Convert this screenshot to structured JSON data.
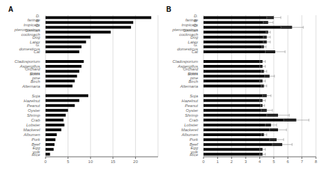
{
  "chart_data": [
    {
      "type": "bar",
      "title": "A",
      "orientation": "horizontal",
      "categories": [
        "D. farinae",
        "B. tropicalis",
        "D. pteronyssinus",
        "German cockroach",
        "Dog",
        "Latex",
        "G. domesticus",
        "Cat",
        null,
        "Cladosporium",
        "Aspergillus",
        "Orchard grass",
        "Scots pine",
        "Birch",
        "Alternaria",
        null,
        "Soja",
        "Hazelnut",
        "Peanut",
        "Oyster",
        "Shrimp",
        "Crab",
        "Lobster",
        "Mackerel",
        "Albumen",
        "Pork",
        "Beef",
        "Egg yolk",
        "Rice"
      ],
      "values": [
        23.5,
        19.5,
        19.0,
        14.5,
        10.0,
        9.0,
        8.0,
        7.5,
        null,
        8.5,
        8.0,
        7.5,
        7.0,
        6.5,
        6.0,
        null,
        9.5,
        7.5,
        6.5,
        5.0,
        4.5,
        4.0,
        4.2,
        3.5,
        2.5,
        2.2,
        2.0,
        1.8,
        1.0
      ],
      "color": "black",
      "xlim": [
        0,
        25
      ],
      "xticks": [
        0,
        5,
        10,
        15,
        20
      ],
      "grid": true
    },
    {
      "type": "bar",
      "title": "B",
      "orientation": "horizontal",
      "categories": [
        "D. farinae",
        "B. tropicalis",
        "D. pteronyssinus",
        "German cockroach",
        "Dog",
        "Latex",
        "G. domesticus",
        "Cat",
        null,
        "Cladosporium",
        "Aspergillus",
        "Orchard grass",
        "Scots pine",
        "Birch",
        "Alternaria",
        null,
        "Soja",
        "Hazelnut",
        "Peanut",
        "Oyster",
        "Shrimp",
        "Crab",
        "Lobster",
        "Mackerel",
        "Albumen",
        "Pork",
        "Beef",
        "Egg yolk",
        "Rice"
      ],
      "values": [
        5.0,
        4.6,
        6.3,
        4.6,
        4.5,
        4.5,
        4.3,
        5.1,
        null,
        4.2,
        4.2,
        4.3,
        4.7,
        4.2,
        4.3,
        null,
        4.5,
        4.2,
        4.2,
        4.5,
        5.3,
        6.6,
        4.8,
        5.3,
        4.3,
        5.2,
        5.6,
        4.2,
        4.2
      ],
      "errors": [
        0.5,
        0.35,
        0.8,
        0.15,
        0.25,
        0.25,
        0.15,
        0.7,
        null,
        0.2,
        0.2,
        0.2,
        0.35,
        0.2,
        0.2,
        null,
        0.3,
        0.2,
        0.15,
        0.4,
        0.8,
        0.9,
        0.4,
        0.6,
        0.2,
        0.5,
        0.7,
        0.2,
        0.2
      ],
      "color": "black",
      "xlim": [
        0,
        8
      ],
      "xticks": [
        0,
        1,
        2,
        3,
        4,
        5,
        6,
        7,
        8
      ],
      "grid": true
    }
  ]
}
